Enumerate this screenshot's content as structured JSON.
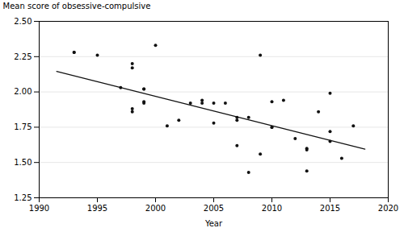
{
  "chart_data": {
    "type": "scatter",
    "xlabel": "Year",
    "ylabel": "Mean score of obsessive-compulsive",
    "xlim": [
      1990,
      2020
    ],
    "ylim": [
      1.25,
      2.5
    ],
    "xticks": [
      1990,
      1995,
      2000,
      2005,
      2010,
      2015,
      2020
    ],
    "yticks": [
      1.25,
      {
        "value": 1.5,
        "label": "1.50"
      },
      1.75,
      {
        "value": 2,
        "label": "2.00"
      },
      2.25,
      {
        "value": 2.5,
        "label": "2.50"
      }
    ],
    "grid": "y",
    "series": [
      {
        "type": "scatter",
        "color": "#111111",
        "x": [
          1993,
          1993,
          1995,
          1997,
          1998,
          1998,
          1998,
          1998,
          1999,
          1999,
          1999,
          1999,
          2000,
          2001,
          2002,
          2003,
          2004,
          2004,
          2005,
          2005,
          2006,
          2007,
          2007,
          2007,
          2008,
          2008,
          2009,
          2009,
          2010,
          2010,
          2010,
          2011,
          2012,
          2013,
          2013,
          2013,
          2014,
          2015,
          2015,
          2015,
          2016,
          2017
        ],
        "values": [
          2.28,
          2.28,
          2.26,
          2.03,
          1.88,
          1.86,
          2.17,
          2.2,
          2.02,
          2.02,
          1.93,
          1.92,
          2.33,
          1.76,
          1.8,
          1.92,
          1.92,
          1.94,
          1.78,
          1.92,
          1.92,
          1.62,
          1.8,
          1.82,
          1.43,
          1.82,
          1.56,
          2.26,
          1.75,
          1.75,
          1.93,
          1.94,
          1.67,
          1.59,
          1.6,
          1.44,
          1.86,
          1.65,
          1.72,
          1.99,
          1.53,
          1.76
        ]
      },
      {
        "type": "line",
        "color": "#111111",
        "x": [
          1991.5,
          2018
        ],
        "values": [
          2.145,
          1.595
        ]
      }
    ]
  }
}
